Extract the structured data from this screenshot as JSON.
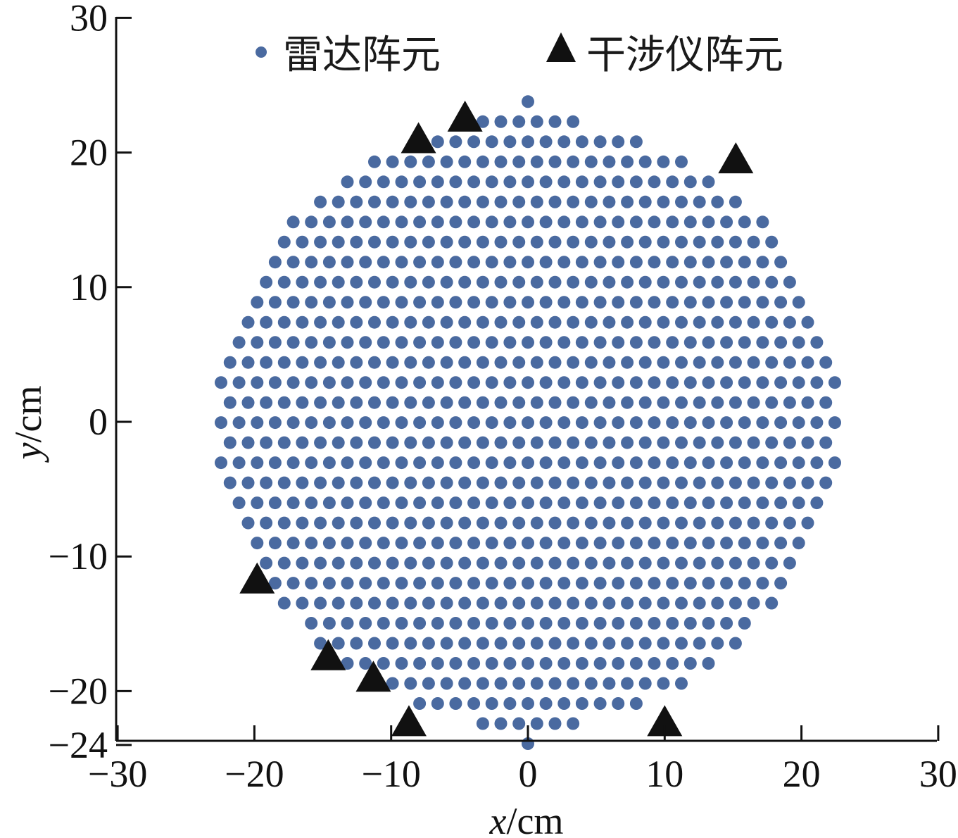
{
  "chart_data": {
    "type": "scatter",
    "xlabel": {
      "var": "x",
      "unit": "/cm"
    },
    "ylabel": {
      "var": "y",
      "unit": "/cm"
    },
    "xlim": [
      -30,
      30
    ],
    "ylim": [
      -24,
      30
    ],
    "xticks": [
      -30,
      -20,
      -10,
      0,
      10,
      20,
      30
    ],
    "yticks": [
      -24,
      -20,
      -10,
      0,
      10,
      20,
      30
    ],
    "x_tick_labels": [
      "−30",
      "−20",
      "−10",
      "0",
      "10",
      "20",
      "30"
    ],
    "y_tick_labels": [
      "−24",
      "−20",
      "−10",
      "0",
      "10",
      "20",
      "30"
    ],
    "grid": false,
    "legend": "top",
    "series": [
      {
        "name": "雷达阵元",
        "marker": "circle",
        "color": "#4a6aa0",
        "lattice": {
          "dx": 1.32,
          "dy": 1.49,
          "row_offset": 0.66,
          "clip_radius": 22.7,
          "ymin": -23.9,
          "ymax": 23.9
        }
      },
      {
        "name": "干涉仪阵元",
        "marker": "triangle",
        "color": "#111111",
        "points": [
          [
            -4.6,
            22.6
          ],
          [
            -8.0,
            21.0
          ],
          [
            15.2,
            19.5
          ],
          [
            -19.8,
            -11.7
          ],
          [
            -14.6,
            -17.4
          ],
          [
            -11.3,
            -19.0
          ],
          [
            -8.7,
            -22.3
          ],
          [
            10.0,
            -22.3
          ]
        ]
      }
    ]
  }
}
